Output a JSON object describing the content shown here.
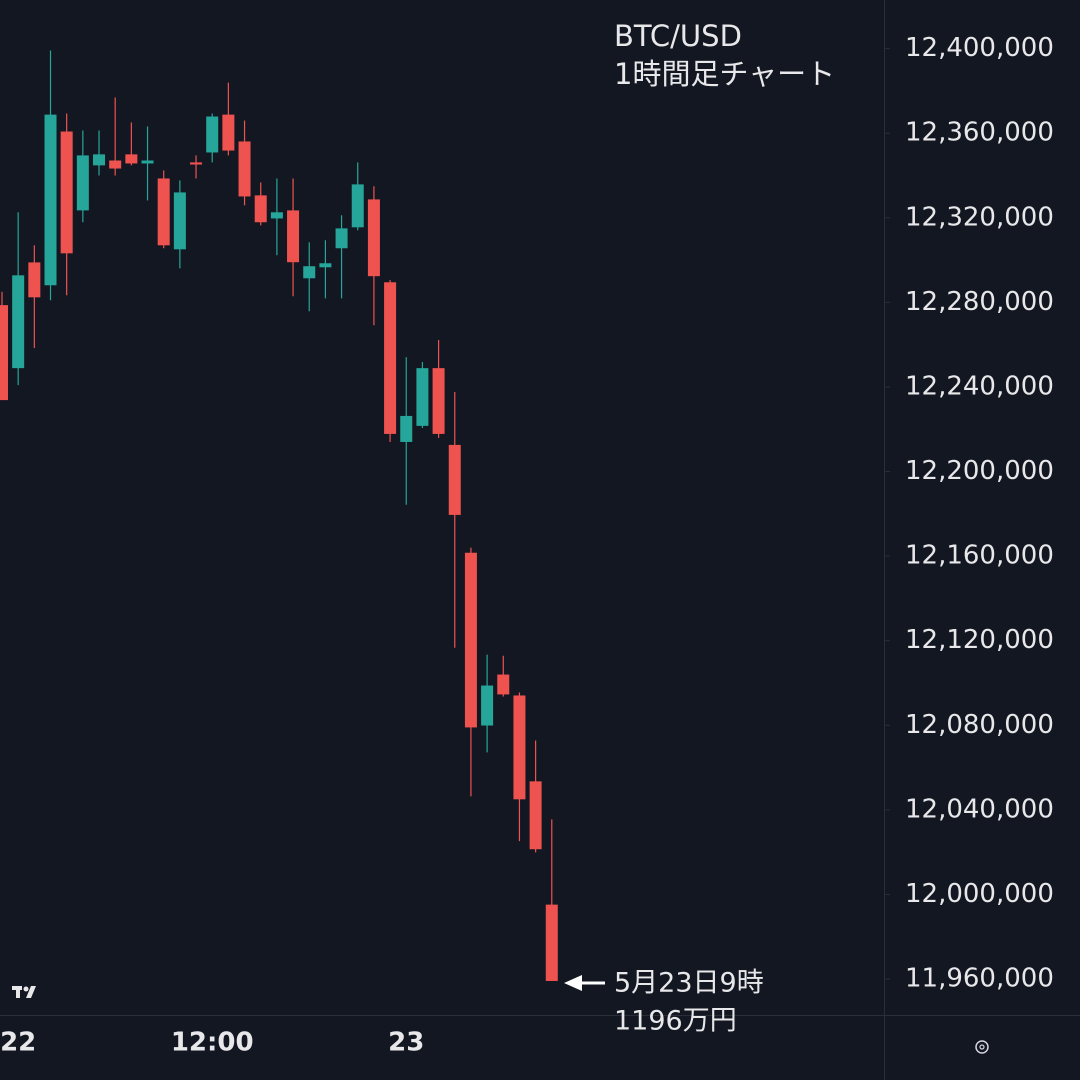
{
  "chart_data": {
    "type": "candlestick",
    "title": "BTC/USD",
    "subtitle": "1時間足チャート",
    "annotation": {
      "date": "5月23日9時",
      "price": "1196万円"
    },
    "categories": [
      null,
      "22",
      null,
      null,
      null,
      null,
      null,
      null,
      null,
      null,
      null,
      null,
      null,
      "12:00",
      null,
      null,
      null,
      null,
      null,
      null,
      null,
      null,
      null,
      null,
      null,
      "23",
      null,
      null,
      null,
      null,
      null,
      null,
      null,
      null,
      null
    ],
    "up_color": "#26a69a",
    "down_color": "#ef5350",
    "open": [
      12278700,
      12248900,
      12298900,
      12288100,
      12360800,
      12323500,
      12344800,
      12347100,
      12350000,
      12345700,
      12338600,
      12305100,
      12346200,
      12350900,
      12368800,
      12356100,
      12330600,
      12319700,
      12323500,
      12291400,
      12296600,
      12305600,
      12315500,
      12328700,
      12289500,
      12214000,
      12221600,
      12248900,
      12212600,
      12161600,
      12079900,
      12104000,
      12094100,
      12053500,
      11995200
    ],
    "high": [
      12285000,
      12322600,
      12307000,
      12399100,
      12369300,
      12361300,
      12361300,
      12376900,
      12365100,
      12363200,
      12342400,
      12337700,
      12349500,
      12369300,
      12383900,
      12366000,
      12336700,
      12338600,
      12338600,
      12308400,
      12309400,
      12321200,
      12346200,
      12334900,
      12290500,
      12254100,
      12251800,
      12262200,
      12237600,
      12164000,
      12113400,
      12112900,
      12095500,
      12072800,
      12035500
    ],
    "low": [
      12233800,
      12240900,
      12258400,
      12281000,
      12283400,
      12317900,
      12340000,
      12340000,
      12344800,
      12328200,
      12305600,
      12296100,
      12338600,
      12346200,
      12349500,
      12325900,
      12316400,
      12302300,
      12282900,
      12275800,
      12281900,
      12281900,
      12314100,
      12269200,
      12214000,
      12184300,
      12220600,
      12215900,
      12116700,
      12046400,
      12067200,
      12093600,
      12025200,
      12019900,
      11959100
    ],
    "close": [
      12233800,
      12292800,
      12282400,
      12368800,
      12303200,
      12349500,
      12350000,
      12343300,
      12345700,
      12347100,
      12307000,
      12332000,
      12345200,
      12367900,
      12351800,
      12330100,
      12317900,
      12322600,
      12299000,
      12297100,
      12298500,
      12315000,
      12335800,
      12292400,
      12217800,
      12226300,
      12248900,
      12217800,
      12179500,
      12079000,
      12098800,
      12094600,
      12045000,
      12021400,
      11959100
    ],
    "ylim": [
      11943000,
      12423000
    ],
    "yticks": [
      {
        "value": 12400000,
        "label": "12,400,000"
      },
      {
        "value": 12360000,
        "label": "12,360,000"
      },
      {
        "value": 12320000,
        "label": "12,320,000"
      },
      {
        "value": 12280000,
        "label": "12,280,000"
      },
      {
        "value": 12240000,
        "label": "12,240,000"
      },
      {
        "value": 12200000,
        "label": "12,200,000"
      },
      {
        "value": 12160000,
        "label": "12,160,000"
      },
      {
        "value": 12120000,
        "label": "12,120,000"
      },
      {
        "value": 12080000,
        "label": "12,080,000"
      },
      {
        "value": 12040000,
        "label": "12,040,000"
      },
      {
        "value": 12000000,
        "label": "12,000,000"
      },
      {
        "value": 11960000,
        "label": "11,960,000"
      }
    ],
    "grid": false
  }
}
